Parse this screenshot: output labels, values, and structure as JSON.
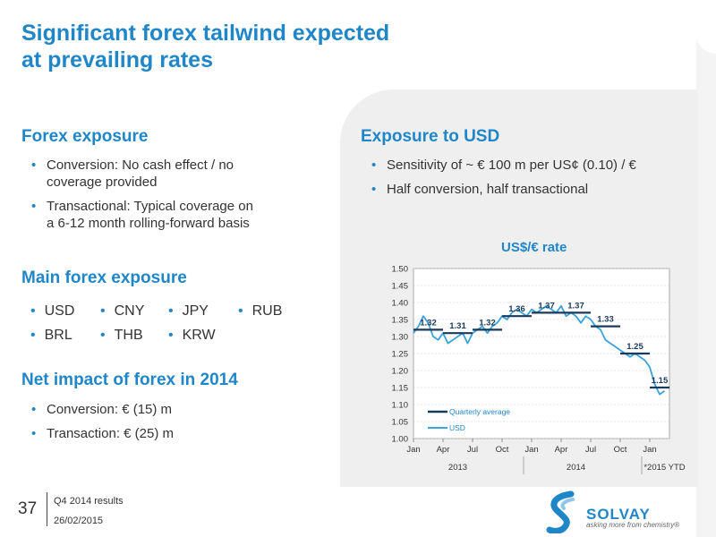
{
  "title_line1": "Significant forex tailwind expected",
  "title_line2": "at prevailing rates",
  "left": {
    "forex_exposure": {
      "heading": "Forex exposure",
      "bullets": [
        [
          "Conversion: No cash effect / no",
          "coverage provided"
        ],
        [
          "Transactional: Typical coverage on",
          "a 6-12 month rolling-forward basis"
        ]
      ]
    },
    "main_exposure": {
      "heading": "Main forex exposure",
      "currencies": [
        "USD",
        "CNY",
        "JPY",
        "RUB",
        "BRL",
        "THB",
        "KRW"
      ]
    },
    "net_impact": {
      "heading": "Net impact of forex in 2014",
      "bullets": [
        "Conversion: € (15) m",
        "Transaction: € (25) m"
      ]
    }
  },
  "right": {
    "heading": "Exposure to USD",
    "bullets": [
      "Sensitivity of ~ € 100 m per US¢ (0.10) / €",
      "Half conversion, half transactional"
    ]
  },
  "chart_data": {
    "type": "line",
    "title": "US$/€ rate",
    "ylim": [
      1.0,
      1.5
    ],
    "yticks": [
      "1.00",
      "1.05",
      "1.10",
      "1.15",
      "1.20",
      "1.25",
      "1.30",
      "1.35",
      "1.40",
      "1.45",
      "1.50"
    ],
    "xticks": [
      "Jan",
      "Apr",
      "Jul",
      "Oct",
      "Jan",
      "Apr",
      "Jul",
      "Oct",
      "Jan"
    ],
    "xgroups": [
      "2013",
      "2014",
      "*2015 YTD"
    ],
    "grid": true,
    "legend_position": "bottom-left",
    "series": [
      {
        "name": "Quarterly average",
        "color": "#1a3a5c",
        "values": [
          1.32,
          1.31,
          1.32,
          1.36,
          1.37,
          1.37,
          1.33,
          1.25,
          1.15
        ],
        "labels": [
          "1.32",
          "1.31",
          "1.32",
          "1.36",
          "1.37",
          "1.37",
          "1.33",
          "1.25",
          "1.15"
        ]
      },
      {
        "name": "USD",
        "color": "#3aa3dc",
        "x_months": [
          0,
          0.5,
          1,
          1.5,
          2,
          2.5,
          3,
          3.5,
          4,
          4.5,
          5,
          5.5,
          6,
          6.5,
          7,
          7.5,
          8,
          8.5,
          9,
          9.5,
          10,
          10.5,
          11,
          11.5,
          12,
          12.5,
          13,
          13.5,
          14,
          14.5,
          15,
          15.5,
          16,
          16.5,
          17,
          17.5,
          18,
          18.5,
          19,
          19.5,
          20,
          20.5,
          21,
          21.5,
          22,
          22.5,
          23,
          23.5,
          24,
          24.5,
          25,
          25.5
        ],
        "values": [
          1.31,
          1.33,
          1.36,
          1.34,
          1.3,
          1.29,
          1.31,
          1.28,
          1.29,
          1.3,
          1.31,
          1.28,
          1.31,
          1.32,
          1.33,
          1.31,
          1.33,
          1.34,
          1.36,
          1.35,
          1.37,
          1.38,
          1.37,
          1.36,
          1.38,
          1.37,
          1.38,
          1.39,
          1.38,
          1.37,
          1.39,
          1.36,
          1.37,
          1.36,
          1.34,
          1.36,
          1.35,
          1.33,
          1.32,
          1.29,
          1.28,
          1.27,
          1.26,
          1.25,
          1.24,
          1.25,
          1.24,
          1.23,
          1.21,
          1.16,
          1.13,
          1.14
        ]
      }
    ]
  },
  "footer": {
    "page": "37",
    "line1": "Q4 2014 results",
    "line2": "26/02/2015"
  },
  "logo": {
    "name": "SOLVAY",
    "tagline": "asking more from chemistry®"
  }
}
